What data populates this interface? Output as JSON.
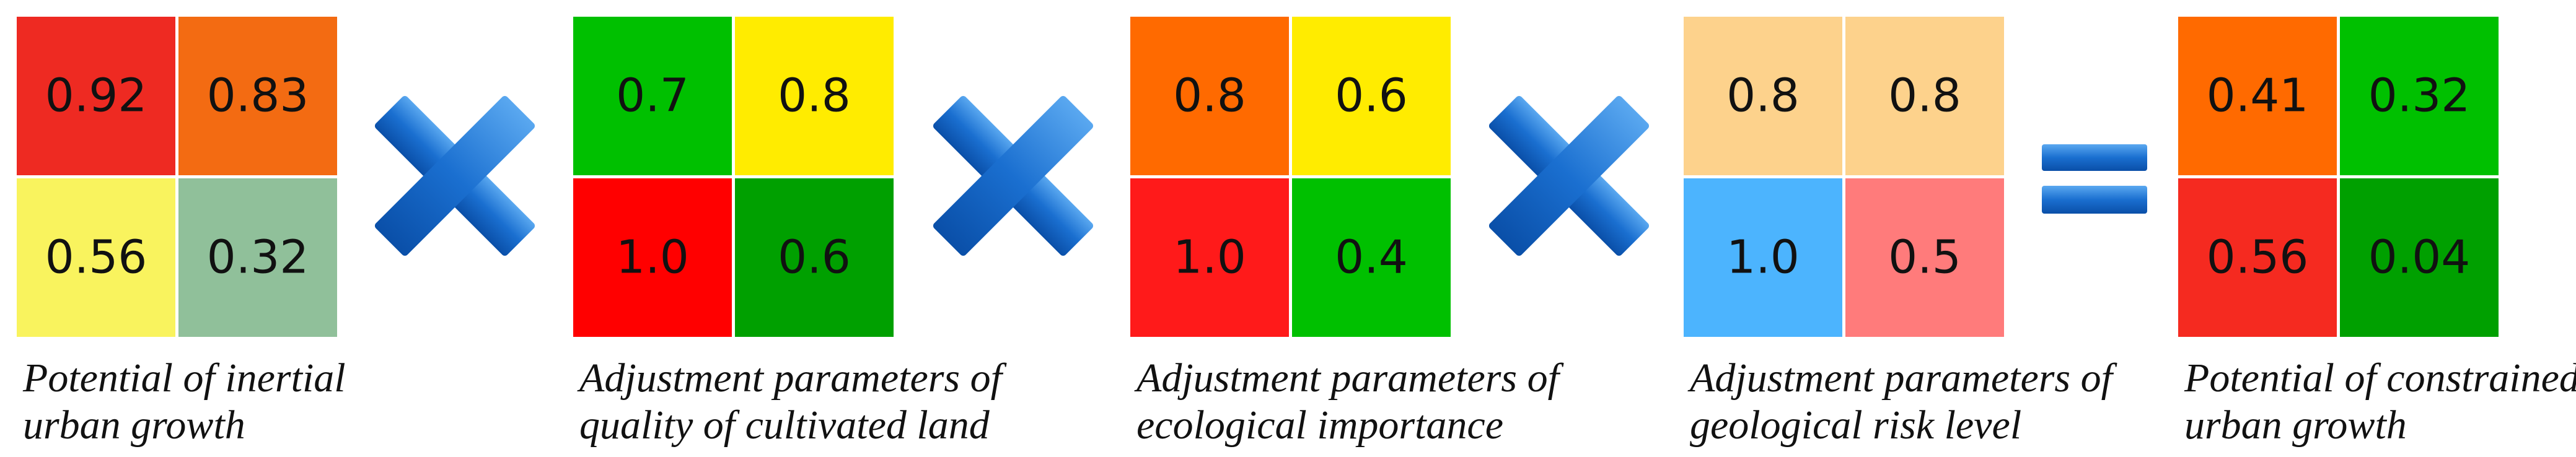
{
  "panels": [
    {
      "cells": [
        {
          "text": "0.92",
          "color": "#ee2a22"
        },
        {
          "text": "0.83",
          "color": "#f36b12"
        },
        {
          "text": "0.56",
          "color": "#f9f35e"
        },
        {
          "text": "0.32",
          "color": "#90c09a"
        }
      ],
      "caption": [
        "Potential of inertial",
        "urban growth"
      ]
    },
    {
      "cells": [
        {
          "text": "0.7",
          "color": "#00c000"
        },
        {
          "text": "0.8",
          "color": "#ffec00"
        },
        {
          "text": "1.0",
          "color": "#ff0000"
        },
        {
          "text": "0.6",
          "color": "#00a000"
        }
      ],
      "caption": [
        "Adjustment parameters of",
        "quality of cultivated land"
      ]
    },
    {
      "cells": [
        {
          "text": "0.8",
          "color": "#ff6a00"
        },
        {
          "text": "0.6",
          "color": "#ffec00"
        },
        {
          "text": "1.0",
          "color": "#ff1a1a"
        },
        {
          "text": "0.4",
          "color": "#00c000"
        }
      ],
      "caption": [
        "Adjustment parameters of",
        "ecological importance"
      ]
    },
    {
      "cells": [
        {
          "text": "0.8",
          "color": "#fdd28c"
        },
        {
          "text": "0.8",
          "color": "#fdd28c"
        },
        {
          "text": "1.0",
          "color": "#4cb4fe"
        },
        {
          "text": "0.5",
          "color": "#ff7b7b"
        }
      ],
      "caption": [
        "Adjustment parameters of",
        "geological risk level"
      ]
    },
    {
      "cells": [
        {
          "text": "0.41",
          "color": "#ff6a00"
        },
        {
          "text": "0.32",
          "color": "#00c000"
        },
        {
          "text": "0.56",
          "color": "#f52a20"
        },
        {
          "text": "0.04",
          "color": "#00a000"
        }
      ],
      "caption": [
        "Potential of constrained",
        "urban growth"
      ]
    }
  ]
}
